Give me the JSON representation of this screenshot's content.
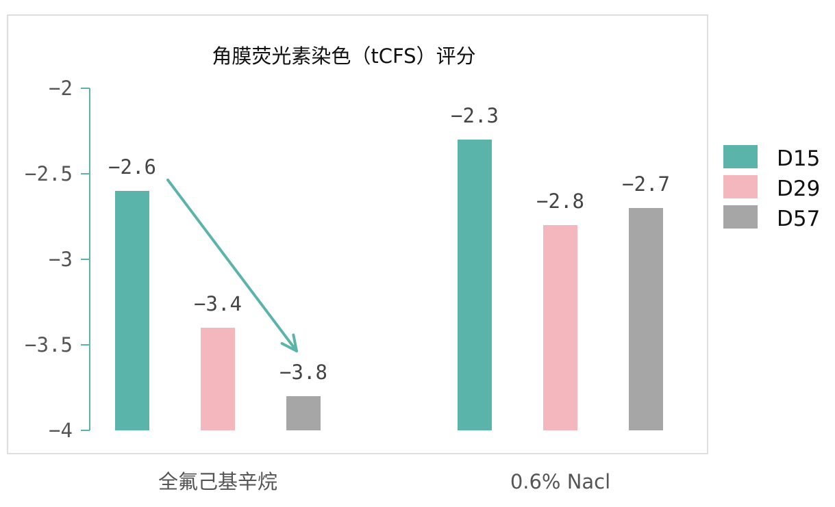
{
  "chart_data": {
    "type": "bar",
    "title": "角膜荧光素染色（tCFS）评分",
    "categories": [
      "全氟己基辛烷",
      "0.6% Nacl"
    ],
    "series": [
      {
        "name": "D15",
        "values": [
          -2.6,
          -2.3
        ],
        "color": "#5bb4aa"
      },
      {
        "name": "D29",
        "values": [
          -3.4,
          -2.8
        ],
        "color": "#f4b7be"
      },
      {
        "name": "D57",
        "values": [
          -3.8,
          -2.7
        ],
        "color": "#a6a6a6"
      }
    ],
    "data_labels": [
      [
        "−2.6",
        "−2.3"
      ],
      [
        "−3.4",
        "−2.8"
      ],
      [
        "−3.8",
        "−2.7"
      ]
    ],
    "ylim": [
      -4,
      -2
    ],
    "yticks": [
      -2,
      -2.5,
      -3,
      -3.5,
      -4
    ],
    "ytick_labels": [
      "−2",
      "−2.5",
      "−3",
      "−3.5",
      "−4"
    ],
    "axis_color": "#5bb4aa",
    "grid": false,
    "legend_position": "right",
    "annotations": [
      {
        "type": "arrow",
        "from_series": "D15",
        "to_series": "D57",
        "category": "全氟己基辛烷",
        "color": "#5bb4aa"
      }
    ]
  }
}
